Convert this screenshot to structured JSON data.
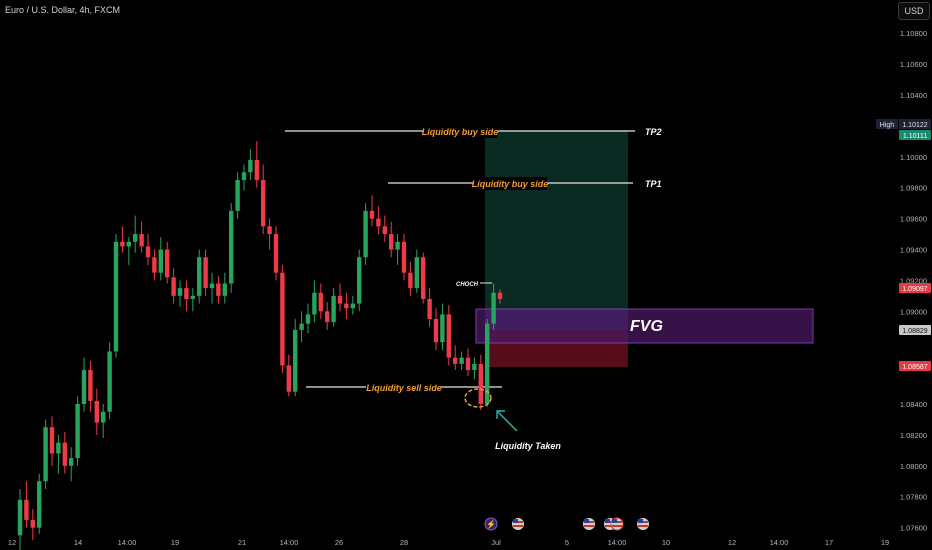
{
  "header": {
    "symbol_title": "Euro / U.S. Dollar, 4h, FXCM",
    "currency_button": "USD"
  },
  "colors": {
    "background": "#000000",
    "bull": "#26a65b",
    "bear": "#ef3b47",
    "annotation_orange": "#f39c2a",
    "fvg_fill": "#4a1860",
    "fvg_border": "#7c3aa8",
    "target_zone": "#0c3328",
    "stop_zone": "#5b0e1c",
    "entry_zone": "#2a3a6a",
    "arrow": "#2fb8a8"
  },
  "chart_data": {
    "type": "candlestick",
    "y_axis": {
      "ticks": [
        "1.10800",
        "1.10600",
        "1.10400",
        "1.10000",
        "1.09800",
        "1.09600",
        "1.09400",
        "1.09200",
        "1.09000",
        "1.08400",
        "1.08200",
        "1.08000",
        "1.07800",
        "1.07600"
      ],
      "ylim": [
        1.0752,
        1.1095
      ]
    },
    "x_axis": {
      "ticks": [
        "12",
        "14",
        "14:00",
        "19",
        "21",
        "14:00",
        "26",
        "28",
        "Jul",
        "5",
        "14:00",
        "10",
        "12",
        "14:00",
        "17",
        "19"
      ]
    },
    "price_labels": [
      {
        "label": "High",
        "value": "1.10122"
      },
      {
        "label": "",
        "value": "1.10111"
      },
      {
        "label": "",
        "value": "1.09097"
      },
      {
        "label": "",
        "value": "1.08829"
      },
      {
        "label": "",
        "value": "1.08587"
      }
    ],
    "candles": [
      [
        1.0755,
        1.0785,
        1.0745,
        1.0778
      ],
      [
        1.0778,
        1.079,
        1.076,
        1.0765
      ],
      [
        1.0765,
        1.0772,
        1.0752,
        1.076
      ],
      [
        1.076,
        1.0795,
        1.0756,
        1.079
      ],
      [
        1.079,
        1.083,
        1.0785,
        1.0825
      ],
      [
        1.0825,
        1.0832,
        1.08,
        1.0808
      ],
      [
        1.0808,
        1.082,
        1.0795,
        1.0815
      ],
      [
        1.0815,
        1.0822,
        1.0795,
        1.08
      ],
      [
        1.08,
        1.0812,
        1.079,
        1.0805
      ],
      [
        1.0805,
        1.0845,
        1.08,
        1.084
      ],
      [
        1.084,
        1.087,
        1.0835,
        1.0862
      ],
      [
        1.0862,
        1.0868,
        1.0835,
        1.0842
      ],
      [
        1.0842,
        1.085,
        1.082,
        1.0828
      ],
      [
        1.0828,
        1.084,
        1.0818,
        1.0835
      ],
      [
        1.0835,
        1.088,
        1.083,
        1.0874
      ],
      [
        1.0874,
        1.095,
        1.087,
        1.0945
      ],
      [
        1.0945,
        1.0955,
        1.0938,
        1.0942
      ],
      [
        1.0942,
        1.0948,
        1.093,
        1.0945
      ],
      [
        1.0945,
        1.0962,
        1.0938,
        1.095
      ],
      [
        1.095,
        1.0958,
        1.0938,
        1.0942
      ],
      [
        1.0942,
        1.095,
        1.093,
        1.0935
      ],
      [
        1.0935,
        1.094,
        1.092,
        1.0925
      ],
      [
        1.0925,
        1.0948,
        1.092,
        1.094
      ],
      [
        1.094,
        1.0945,
        1.0918,
        1.0922
      ],
      [
        1.0922,
        1.0928,
        1.0905,
        1.091
      ],
      [
        1.091,
        1.092,
        1.0903,
        1.0915
      ],
      [
        1.0915,
        1.092,
        1.09,
        1.0908
      ],
      [
        1.0908,
        1.0915,
        1.09,
        1.091
      ],
      [
        1.091,
        1.094,
        1.0905,
        1.0935
      ],
      [
        1.0935,
        1.094,
        1.091,
        1.0915
      ],
      [
        1.0915,
        1.0925,
        1.0905,
        1.0918
      ],
      [
        1.0918,
        1.0923,
        1.0905,
        1.091
      ],
      [
        1.091,
        1.0925,
        1.0905,
        1.0918
      ],
      [
        1.0918,
        1.097,
        1.0912,
        1.0965
      ],
      [
        1.0965,
        1.099,
        1.096,
        1.0985
      ],
      [
        1.0985,
        1.0995,
        1.0978,
        1.099
      ],
      [
        1.099,
        1.1005,
        1.0985,
        1.0998
      ],
      [
        1.0998,
        1.101,
        1.098,
        1.0985
      ],
      [
        1.0985,
        1.0995,
        1.095,
        1.0955
      ],
      [
        1.0955,
        1.096,
        1.094,
        1.095
      ],
      [
        1.095,
        1.0955,
        1.092,
        1.0925
      ],
      [
        1.0925,
        1.093,
        1.086,
        1.0865
      ],
      [
        1.0865,
        1.0872,
        1.0845,
        1.0848
      ],
      [
        1.0848,
        1.0895,
        1.0845,
        1.0888
      ],
      [
        1.0888,
        1.09,
        1.088,
        1.0892
      ],
      [
        1.0892,
        1.0905,
        1.0886,
        1.0898
      ],
      [
        1.0898,
        1.092,
        1.0893,
        1.0912
      ],
      [
        1.0912,
        1.0918,
        1.0895,
        1.09
      ],
      [
        1.09,
        1.0906,
        1.0888,
        1.0893
      ],
      [
        1.0893,
        1.0915,
        1.089,
        1.091
      ],
      [
        1.091,
        1.0918,
        1.09,
        1.0905
      ],
      [
        1.0905,
        1.0912,
        1.0895,
        1.0902
      ],
      [
        1.0902,
        1.091,
        1.0898,
        1.0905
      ],
      [
        1.0905,
        1.094,
        1.09,
        1.0935
      ],
      [
        1.0935,
        1.097,
        1.093,
        1.0965
      ],
      [
        1.0965,
        1.0975,
        1.0955,
        1.096
      ],
      [
        1.096,
        1.0968,
        1.095,
        1.0955
      ],
      [
        1.0955,
        1.0962,
        1.0945,
        1.095
      ],
      [
        1.095,
        1.0958,
        1.0935,
        1.094
      ],
      [
        1.094,
        1.095,
        1.093,
        1.0945
      ],
      [
        1.0945,
        1.095,
        1.092,
        1.0925
      ],
      [
        1.0925,
        1.0932,
        1.091,
        1.0915
      ],
      [
        1.0915,
        1.094,
        1.0912,
        1.0935
      ],
      [
        1.0935,
        1.0938,
        1.0905,
        1.0908
      ],
      [
        1.0908,
        1.0915,
        1.089,
        1.0895
      ],
      [
        1.0895,
        1.0902,
        1.0875,
        1.088
      ],
      [
        1.088,
        1.0905,
        1.0875,
        1.0898
      ],
      [
        1.0898,
        1.0904,
        1.0865,
        1.087
      ],
      [
        1.087,
        1.0878,
        1.0862,
        1.0866
      ],
      [
        1.0866,
        1.0874,
        1.0862,
        1.087
      ],
      [
        1.087,
        1.0876,
        1.0858,
        1.0862
      ],
      [
        1.0862,
        1.087,
        1.0856,
        1.0866
      ],
      [
        1.0866,
        1.0872,
        1.0836,
        1.084
      ],
      [
        1.084,
        1.0895,
        1.0838,
        1.0892
      ],
      [
        1.0892,
        1.0918,
        1.0888,
        1.0912
      ],
      [
        1.0912,
        1.0914,
        1.0905,
        1.0908
      ]
    ],
    "annotations": [
      {
        "label": "Liquidity buy side",
        "target": "TP2",
        "price": 1.1012
      },
      {
        "label": "Liquidity buy side",
        "target": "TP1",
        "price": 1.098
      },
      {
        "label": "Liquidity sell side",
        "price": 1.0845
      },
      {
        "label": "CHOCH",
        "price": 1.091
      },
      {
        "label": "FVG",
        "top": 1.08955,
        "bottom": 1.08735
      },
      {
        "label": "Liquidity Taken"
      }
    ],
    "position": {
      "target_top": 1.1012,
      "entry": 1.08955,
      "fvg_mid": 1.08829,
      "stop": 1.08587
    },
    "event_icons": [
      "lightning",
      "flag-us",
      "flag-us",
      "flag-us",
      "flag-us",
      "flag-us"
    ]
  }
}
